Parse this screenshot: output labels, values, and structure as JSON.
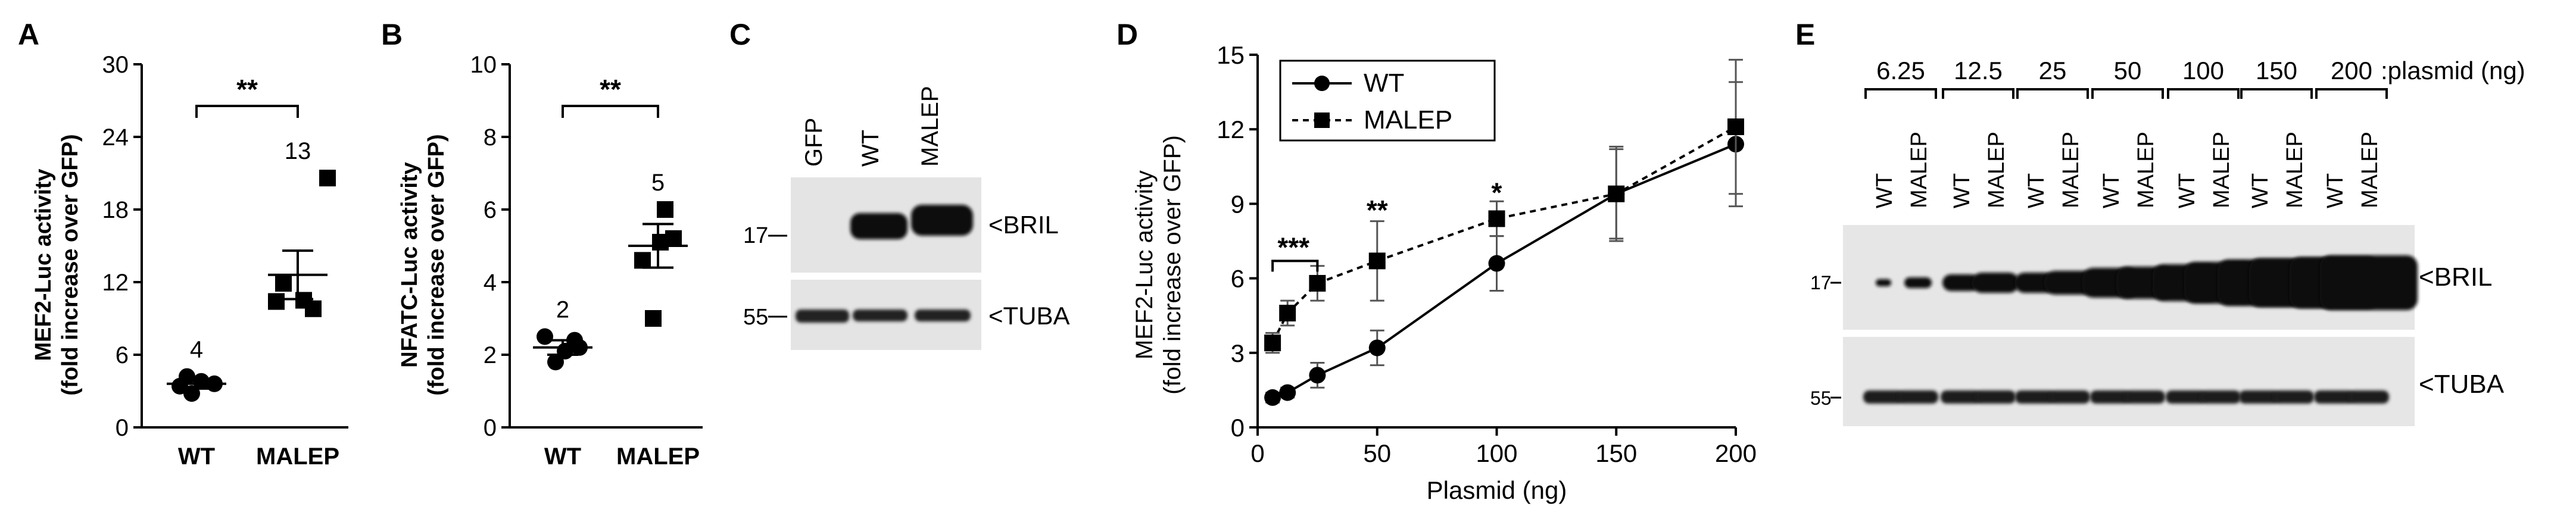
{
  "chart_data": [
    {
      "panel": "A",
      "type": "scatter",
      "ylabel_line1": "MEF2-Luc activity",
      "ylabel_line2": "(fold increase over GFP)",
      "yticks": [
        0,
        6,
        12,
        18,
        24,
        30
      ],
      "ylim": [
        0,
        30
      ],
      "categories": [
        "WT",
        "MALEP"
      ],
      "points": [
        {
          "group": "WT",
          "marker": "circle",
          "values": [
            3.4,
            3.8,
            2.8,
            3.6,
            4.2
          ]
        },
        {
          "group": "MALEP",
          "marker": "square",
          "values": [
            20.6,
            11.9,
            10.4,
            10.5,
            9.8
          ]
        }
      ],
      "means": [
        3.6,
        12.6
      ],
      "sems": [
        0.4,
        2.0
      ],
      "n_labels": [
        "4",
        "13"
      ],
      "significance": "**"
    },
    {
      "panel": "B",
      "type": "scatter",
      "ylabel_line1": "NFATC-Luc activity",
      "ylabel_line2": "(fold increase over GFP)",
      "yticks": [
        0,
        2,
        4,
        6,
        8,
        10
      ],
      "ylim": [
        0,
        10
      ],
      "categories": [
        "WT",
        "MALEP"
      ],
      "points": [
        {
          "group": "WT",
          "marker": "circle",
          "values": [
            2.5,
            2.1,
            1.8,
            2.2,
            2.4
          ]
        },
        {
          "group": "MALEP",
          "marker": "square",
          "values": [
            6.0,
            4.6,
            5.2,
            5.1,
            3.0
          ]
        }
      ],
      "means": [
        2.2,
        5.0
      ],
      "sems": [
        0.2,
        0.6
      ],
      "n_labels": [
        "2",
        "5"
      ],
      "significance": "**"
    },
    {
      "panel": "D",
      "type": "line",
      "ylabel_line1": "MEF2-Luc activity",
      "ylabel_line2": "(fold increase over GFP)",
      "xlabel": "Plasmid (ng)",
      "xticks": [
        0,
        50,
        100,
        150,
        200
      ],
      "yticks": [
        0,
        3,
        6,
        9,
        12,
        15
      ],
      "xlim": [
        0,
        200
      ],
      "ylim": [
        0,
        15
      ],
      "series": [
        {
          "name": "WT",
          "marker": "circle",
          "style": "solid",
          "x": [
            6.25,
            12.5,
            25,
            50,
            100,
            150,
            200
          ],
          "y": [
            1.2,
            1.4,
            2.1,
            3.2,
            6.6,
            9.4,
            11.4
          ],
          "err": [
            0.2,
            0.2,
            0.5,
            0.7,
            1.1,
            1.9,
            2.5
          ]
        },
        {
          "name": "MALEP",
          "marker": "square",
          "style": "dashed",
          "x": [
            6.25,
            12.5,
            25,
            50,
            100,
            150,
            200
          ],
          "y": [
            3.4,
            4.6,
            5.8,
            6.7,
            8.4,
            9.4,
            12.1
          ],
          "err": [
            0.4,
            0.5,
            0.7,
            1.6,
            0.7,
            1.8,
            2.7
          ]
        }
      ],
      "annotations": [
        {
          "text": "***",
          "x": 15,
          "y": 7.2
        },
        {
          "text": "**",
          "x": 50,
          "y": 8.7
        },
        {
          "text": "*",
          "x": 100,
          "y": 9.4
        }
      ]
    }
  ],
  "panel_labels": {
    "a": "A",
    "b": "B",
    "c": "C",
    "d": "D",
    "e": "E"
  },
  "blot_c": {
    "lanes": [
      "GFP",
      "WT",
      "MALEP"
    ],
    "mw_bril": "17",
    "mw_tuba": "55",
    "label_bril": "<BRIL",
    "label_tuba": "<TUBA"
  },
  "blot_e": {
    "amounts": [
      "6.25",
      "12.5",
      "25",
      "50",
      "100",
      "150",
      "200"
    ],
    "unit_label": ":plasmid (ng)",
    "lane_wt": "WT",
    "lane_malep": "MALEP",
    "mw_bril": "17",
    "mw_tuba": "55",
    "label_bril": "<BRIL",
    "label_tuba": "<TUBA"
  },
  "colors": {
    "ink": "#000000",
    "gel": "#e3e3e3",
    "band": "#1a1a1a"
  }
}
